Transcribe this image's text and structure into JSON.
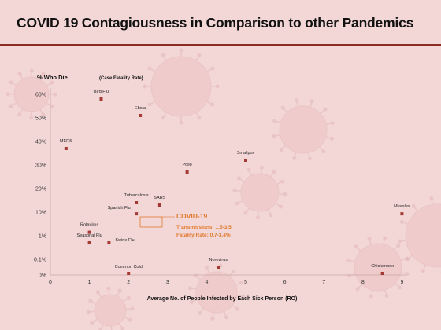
{
  "header": {
    "title": "COVID 19 Contagiousness in Comparison to other Pandemics"
  },
  "colors": {
    "marker": "#a33a33",
    "covid_accent": "#e07a2c",
    "title_rule": "#8a2a25",
    "background": "#f3d6d6",
    "axis": "#c9a8a8"
  },
  "chart_data": {
    "type": "scatter",
    "title": "COVID 19 Contagiousness in Comparison to other Pandemics",
    "ylabel": "% Who Die",
    "ylabel_note": "(Case Fatality Rate)",
    "xlabel": "Average No. of People Infected by Each Sick Person (RO)",
    "xlim": [
      0,
      9
    ],
    "x_ticks": [
      "0",
      "1",
      "2",
      "3",
      "4",
      "5",
      "6",
      "7",
      "8",
      "9"
    ],
    "y_ticks": [
      "0%",
      "0.1%",
      "1%",
      "10%",
      "20%",
      "30%",
      "40%",
      "50%",
      "60%"
    ],
    "y_scale": "piecewise",
    "grid": false,
    "points": [
      {
        "label": "Bird Flu",
        "x": 1.3,
        "y": 58
      },
      {
        "label": "Ebola",
        "x": 2.3,
        "y": 51
      },
      {
        "label": "MERS",
        "x": 0.4,
        "y": 37
      },
      {
        "label": "Smallpox",
        "x": 5.0,
        "y": 32
      },
      {
        "label": "Polio",
        "x": 3.5,
        "y": 27
      },
      {
        "label": "Tuberculosis",
        "x": 2.2,
        "y": 14
      },
      {
        "label": "SARS",
        "x": 2.8,
        "y": 13
      },
      {
        "label": "Spanish Flu",
        "x": 2.2,
        "y": 8.5
      },
      {
        "label": "Measles",
        "x": 9.0,
        "y": 8.5
      },
      {
        "label": "Rotavirus",
        "x": 1.0,
        "y": 1.4
      },
      {
        "label": "Seasonal Flu",
        "x": 1.0,
        "y": 0.5
      },
      {
        "label": "Swine Flu",
        "x": 1.5,
        "y": 0.5
      },
      {
        "label": "Norovirus",
        "x": 4.3,
        "y": 0.05
      },
      {
        "label": "Common Cold",
        "x": 2.0,
        "y": 0.01
      },
      {
        "label": "Chickenpox",
        "x": 8.5,
        "y": 0.01
      }
    ],
    "covid": {
      "label": "COVID-19",
      "transmissions": "Transmissions: 1.5-3.5",
      "fatality": "Fatality Rate: 0.7-3.4%",
      "x_range": [
        1.5,
        3.5
      ],
      "y_range": [
        0.7,
        3.4
      ]
    }
  }
}
